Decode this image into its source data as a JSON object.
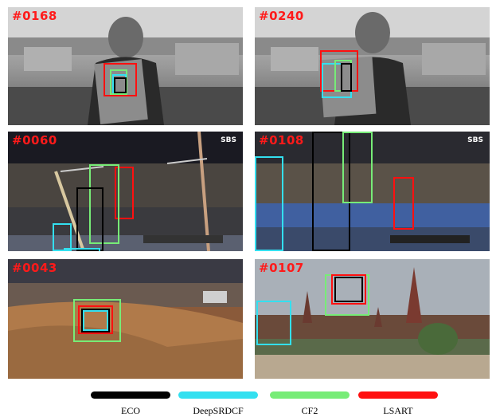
{
  "frames": [
    {
      "label": "#0168"
    },
    {
      "label": "#0240"
    },
    {
      "label": "#0060"
    },
    {
      "label": "#0108"
    },
    {
      "label": "#0043"
    },
    {
      "label": "#0107"
    }
  ],
  "watermarks": {
    "sbs": "SBS"
  },
  "legend": [
    {
      "name": "ECO",
      "color": "#000000"
    },
    {
      "name": "DeepSRDCF",
      "color": "#33e0f0"
    },
    {
      "name": "CF2",
      "color": "#77ec77"
    },
    {
      "name": "LSART",
      "color": "#ff1010"
    }
  ]
}
